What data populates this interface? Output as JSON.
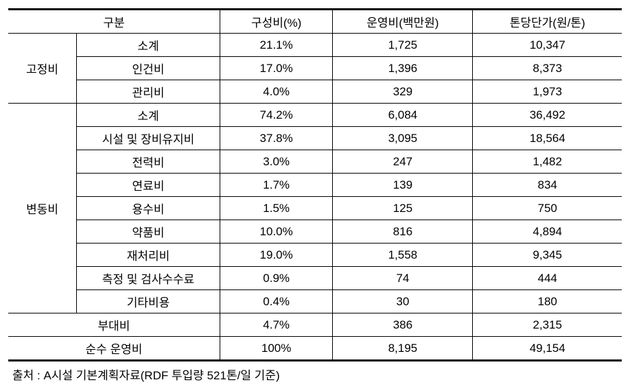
{
  "table": {
    "headers": {
      "category": "구분",
      "ratio": "구성비(%)",
      "cost": "운영비(백만원)",
      "unit_price": "톤당단가(원/톤)"
    },
    "fixed": {
      "label": "고정비",
      "rows": [
        {
          "name": "소계",
          "ratio": "21.1%",
          "cost": "1,725",
          "unit": "10,347"
        },
        {
          "name": "인건비",
          "ratio": "17.0%",
          "cost": "1,396",
          "unit": "8,373"
        },
        {
          "name": "관리비",
          "ratio": "4.0%",
          "cost": "329",
          "unit": "1,973"
        }
      ]
    },
    "variable": {
      "label": "변동비",
      "rows": [
        {
          "name": "소계",
          "ratio": "74.2%",
          "cost": "6,084",
          "unit": "36,492"
        },
        {
          "name": "시설 및 장비유지비",
          "ratio": "37.8%",
          "cost": "3,095",
          "unit": "18,564"
        },
        {
          "name": "전력비",
          "ratio": "3.0%",
          "cost": "247",
          "unit": "1,482"
        },
        {
          "name": "연료비",
          "ratio": "1.7%",
          "cost": "139",
          "unit": "834"
        },
        {
          "name": "용수비",
          "ratio": "1.5%",
          "cost": "125",
          "unit": "750"
        },
        {
          "name": "약품비",
          "ratio": "10.0%",
          "cost": "816",
          "unit": "4,894"
        },
        {
          "name": "재처리비",
          "ratio": "19.0%",
          "cost": "1,558",
          "unit": "9,345"
        },
        {
          "name": "측정 및 검사수수료",
          "ratio": "0.9%",
          "cost": "74",
          "unit": "444"
        },
        {
          "name": "기타비용",
          "ratio": "0.4%",
          "cost": "30",
          "unit": "180"
        }
      ]
    },
    "incidental": {
      "name": "부대비",
      "ratio": "4.7%",
      "cost": "386",
      "unit": "2,315"
    },
    "net": {
      "name": "순수 운영비",
      "ratio": "100%",
      "cost": "8,195",
      "unit": "49,154"
    }
  },
  "source_note": "출처 : A시설 기본계획자료(RDF 투입량 521톤/일 기준)"
}
